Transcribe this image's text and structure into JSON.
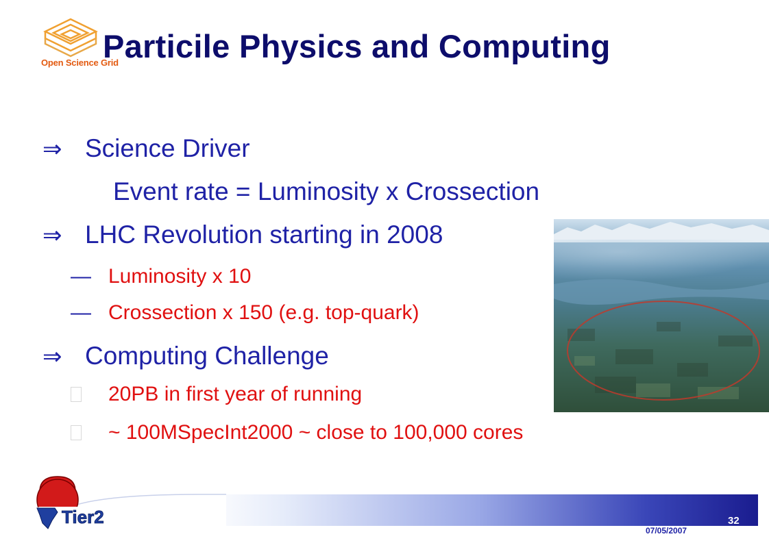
{
  "header": {
    "logo_text": "Open Science Grid",
    "title": "Particile Physics and Computing"
  },
  "content": {
    "science_driver": {
      "label": "Science Driver",
      "detail": "Event rate = Luminosity x Crossection"
    },
    "lhc": {
      "label": "LHC Revolution starting in 2008",
      "items": [
        "Luminosity x 10",
        "Crossection x 150 (e.g. top-quark)"
      ]
    },
    "computing": {
      "label": "Computing Challenge",
      "items": [
        "20PB in first year of running",
        "~ 100MSpecInt2000 ~ close to 100,000 cores"
      ]
    }
  },
  "footer": {
    "logo_text": "Tier2",
    "page_number": "32",
    "date": "07/05/2007"
  },
  "icons": {
    "level1_bullet": "double-arrow-icon",
    "level2_bullet_lhc": "em-dash-icon",
    "level2_bullet_computing": "missing-glyph-icon"
  },
  "colors": {
    "title": "#0d0d6b",
    "body_text": "#1f22a6",
    "sub_text": "#e01010",
    "osg_orange": "#e35a10",
    "footer_band_dark": "#1a1c8f"
  }
}
